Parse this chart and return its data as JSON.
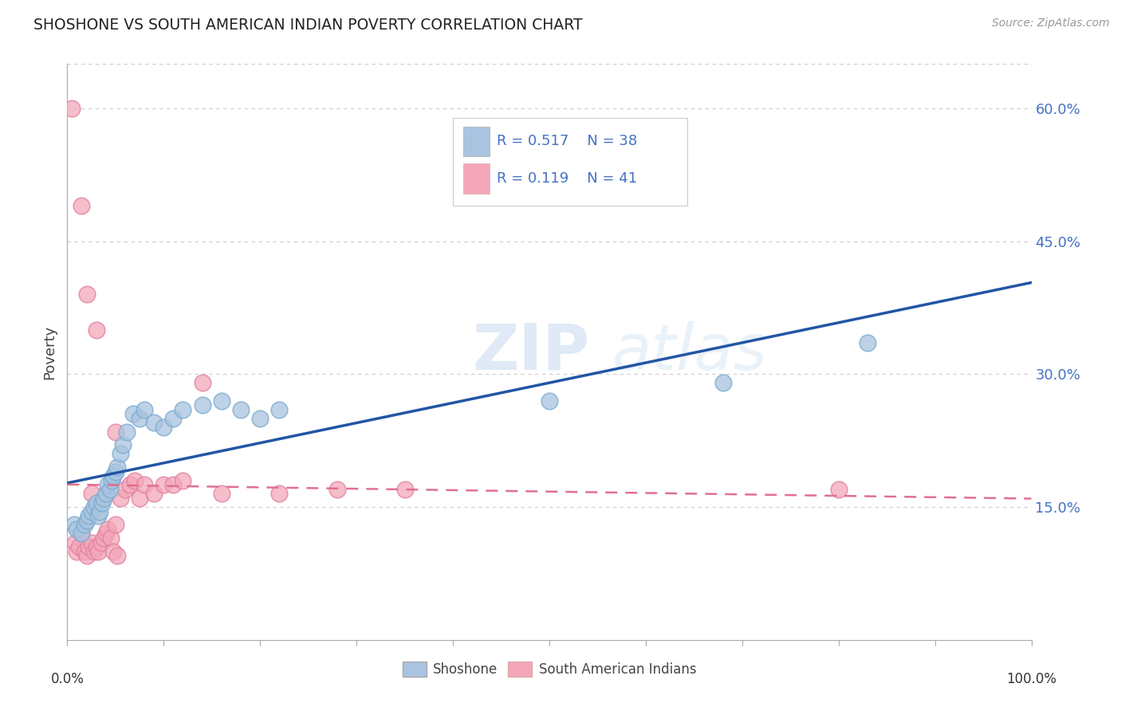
{
  "title": "SHOSHONE VS SOUTH AMERICAN INDIAN POVERTY CORRELATION CHART",
  "source": "Source: ZipAtlas.com",
  "ylabel": "Poverty",
  "xlim": [
    0,
    1.0
  ],
  "ylim": [
    0,
    0.65
  ],
  "yticks": [
    0.15,
    0.3,
    0.45,
    0.6
  ],
  "shoshone_color": "#a8c4e0",
  "shoshone_edge_color": "#7aaace",
  "shoshone_line_color": "#2255a4",
  "south_american_color": "#f4a7b9",
  "south_american_edge_color": "#e080a0",
  "south_american_line_color": "#e07090",
  "background_color": "#ffffff",
  "grid_color": "#cccccc",
  "watermark_zip": "ZIP",
  "watermark_atlas": "atlas",
  "legend_R1": "0.517",
  "legend_N1": "38",
  "legend_R2": "0.119",
  "legend_N2": "41",
  "shoshone_x": [
    0.007,
    0.01,
    0.015,
    0.018,
    0.02,
    0.022,
    0.025,
    0.028,
    0.03,
    0.032,
    0.034,
    0.036,
    0.038,
    0.04,
    0.042,
    0.044,
    0.046,
    0.048,
    0.05,
    0.052,
    0.055,
    0.058,
    0.062,
    0.068,
    0.075,
    0.08,
    0.09,
    0.1,
    0.11,
    0.12,
    0.14,
    0.16,
    0.18,
    0.2,
    0.22,
    0.5,
    0.68,
    0.83
  ],
  "shoshone_y": [
    0.13,
    0.125,
    0.12,
    0.13,
    0.135,
    0.14,
    0.145,
    0.15,
    0.155,
    0.14,
    0.145,
    0.155,
    0.16,
    0.165,
    0.175,
    0.17,
    0.18,
    0.185,
    0.19,
    0.195,
    0.21,
    0.22,
    0.235,
    0.255,
    0.25,
    0.26,
    0.245,
    0.24,
    0.25,
    0.26,
    0.265,
    0.27,
    0.26,
    0.25,
    0.26,
    0.27,
    0.29,
    0.335
  ],
  "south_american_x": [
    0.005,
    0.008,
    0.01,
    0.012,
    0.015,
    0.018,
    0.02,
    0.022,
    0.025,
    0.028,
    0.03,
    0.032,
    0.035,
    0.038,
    0.04,
    0.042,
    0.045,
    0.048,
    0.05,
    0.052,
    0.055,
    0.06,
    0.065,
    0.07,
    0.075,
    0.08,
    0.09,
    0.1,
    0.11,
    0.12,
    0.14,
    0.16,
    0.22,
    0.28,
    0.35,
    0.8,
    0.02,
    0.03,
    0.05,
    0.015,
    0.025
  ],
  "south_american_y": [
    0.6,
    0.11,
    0.1,
    0.105,
    0.12,
    0.1,
    0.095,
    0.105,
    0.11,
    0.1,
    0.105,
    0.1,
    0.11,
    0.115,
    0.12,
    0.125,
    0.115,
    0.1,
    0.13,
    0.095,
    0.16,
    0.17,
    0.175,
    0.18,
    0.16,
    0.175,
    0.165,
    0.175,
    0.175,
    0.18,
    0.29,
    0.165,
    0.165,
    0.17,
    0.17,
    0.17,
    0.39,
    0.35,
    0.235,
    0.49,
    0.165
  ]
}
